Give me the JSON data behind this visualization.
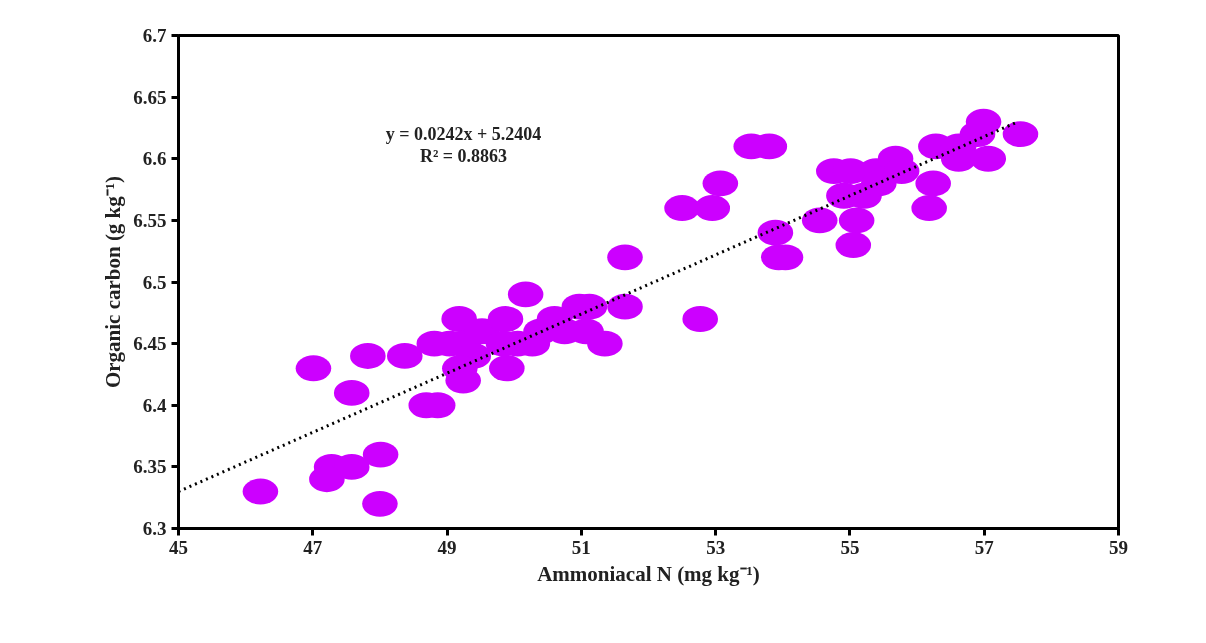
{
  "chart_data": {
    "type": "scatter",
    "xlabel": "Ammoniacal N (mg kg⁻¹)",
    "ylabel": "Organic carbon (g kg⁻¹)",
    "annotations": [
      "y = 0.0242x + 5.2404",
      "R² = 0.8863"
    ],
    "xlim": [
      45,
      59
    ],
    "xticks": [
      45,
      47,
      49,
      51,
      53,
      55,
      57,
      59
    ],
    "ylim": [
      6.3,
      6.7
    ],
    "yticks": [
      6.3,
      6.35,
      6.4,
      6.45,
      6.5,
      6.55,
      6.6,
      6.65,
      6.7
    ],
    "grid": false,
    "series": [
      {
        "marker": "circle",
        "color": "#cc00ff",
        "x": [
          46.22,
          47.01,
          47.82,
          48.37,
          47.58,
          48.69,
          48.86,
          48.01,
          47.28,
          47.58,
          47.21,
          48.0,
          49.18,
          48.81,
          49.04,
          49.24,
          49.52,
          49.87,
          49.39,
          49.19,
          49.24,
          49.89,
          49.84,
          50.17,
          50.05,
          50.27,
          50.4,
          50.6,
          50.75,
          50.97,
          51.12,
          51.07,
          51.35,
          51.65,
          51.65,
          52.77,
          53.89,
          53.94,
          53.53,
          53.8,
          53.07,
          52.95,
          52.5,
          54.04,
          54.55,
          54.76,
          55.01,
          54.91,
          55.21,
          55.1,
          55.05,
          55.39,
          55.43,
          55.68,
          55.77,
          56.24,
          56.18,
          56.28,
          56.62,
          56.62,
          56.9,
          56.99,
          57.06,
          57.54
        ],
        "values": [
          6.33,
          6.43,
          6.44,
          6.44,
          6.41,
          6.4,
          6.4,
          6.36,
          6.35,
          6.35,
          6.34,
          6.32,
          6.47,
          6.45,
          6.45,
          6.45,
          6.46,
          6.47,
          6.44,
          6.43,
          6.42,
          6.43,
          6.45,
          6.49,
          6.45,
          6.45,
          6.46,
          6.47,
          6.46,
          6.48,
          6.48,
          6.46,
          6.45,
          6.52,
          6.48,
          6.47,
          6.54,
          6.52,
          6.61,
          6.61,
          6.58,
          6.56,
          6.56,
          6.52,
          6.55,
          6.59,
          6.59,
          6.57,
          6.57,
          6.55,
          6.53,
          6.59,
          6.58,
          6.6,
          6.59,
          6.58,
          6.56,
          6.61,
          6.61,
          6.6,
          6.62,
          6.63,
          6.6,
          6.62
        ]
      },
      {
        "type": "line",
        "color": "#000000",
        "line_style": "dotted",
        "x": [
          45,
          57.5
        ],
        "values": [
          6.33,
          6.63
        ]
      }
    ]
  }
}
